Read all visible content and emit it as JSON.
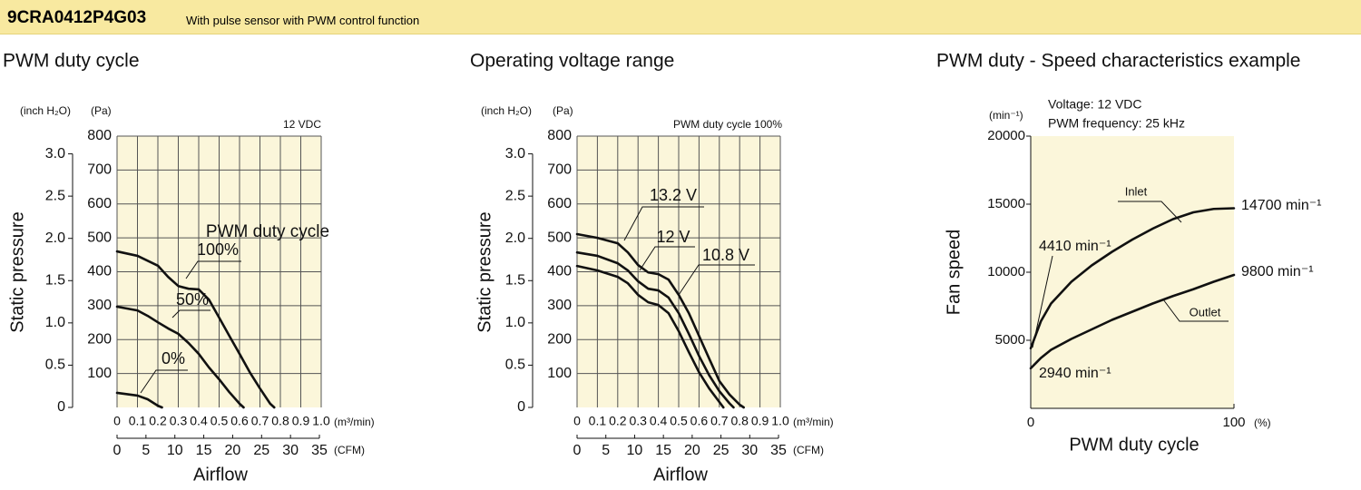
{
  "header": {
    "model": "9CRA0412P4G03",
    "description": "With pulse sensor with PWM control function"
  },
  "chart_data": [
    {
      "type": "line",
      "title": "PWM duty cycle",
      "annotations": [
        "12 VDC"
      ],
      "legend_title": "PWM duty cycle",
      "xlabel": "Airflow",
      "xunit": "(m³/min)",
      "x2unit": "(CFM)",
      "ylabel": "Static pressure",
      "yunit": "(Pa)",
      "y2unit": "(inch H₂O)",
      "xlim": [
        0,
        1
      ],
      "xticks": [
        0,
        0.1,
        0.2,
        0.3,
        0.4,
        0.5,
        0.6,
        0.7,
        0.8,
        0.9,
        {
          "value": 1,
          "label": "1.0"
        }
      ],
      "x2lim": [
        0,
        35.31
      ],
      "x2ticks": [
        0,
        5,
        10,
        15,
        20,
        25,
        30,
        35
      ],
      "ylim": [
        0,
        800
      ],
      "yticks": [
        100,
        200,
        300,
        400,
        500,
        600,
        700,
        800
      ],
      "y2lim": [
        0,
        3.21
      ],
      "y2ticks": [
        0,
        0.5,
        {
          "value": 1,
          "label": "1.0"
        },
        1.5,
        {
          "value": 2,
          "label": "2.0"
        },
        2.5,
        {
          "value": 3,
          "label": "3.0"
        }
      ],
      "grid": true,
      "background": "#fbf6da",
      "series": [
        {
          "name": "100%",
          "color": "#111111",
          "x": [
            0,
            0.1,
            0.2,
            0.25,
            0.3,
            0.35,
            0.4,
            0.45,
            0.5,
            0.55,
            0.6,
            0.65,
            0.7,
            0.75,
            0.77
          ],
          "values": [
            460,
            447,
            418,
            385,
            358,
            350,
            348,
            318,
            265,
            211,
            158,
            104,
            56,
            11,
            0
          ]
        },
        {
          "name": "50%",
          "color": "#111111",
          "x": [
            0,
            0.1,
            0.15,
            0.2,
            0.25,
            0.3,
            0.35,
            0.4,
            0.45,
            0.5,
            0.55,
            0.6,
            0.62
          ],
          "values": [
            297,
            286,
            270,
            251,
            233,
            217,
            190,
            158,
            118,
            83,
            45,
            11,
            0
          ]
        },
        {
          "name": "0%",
          "color": "#111111",
          "x": [
            0,
            0.1,
            0.15,
            0.2,
            0.22
          ],
          "values": [
            43,
            35,
            24,
            5,
            0
          ]
        }
      ]
    },
    {
      "type": "line",
      "title": "Operating voltage range",
      "annotations": [
        "PWM duty cycle 100%"
      ],
      "xlabel": "Airflow",
      "xunit": "(m³/min)",
      "x2unit": "(CFM)",
      "ylabel": "Static pressure",
      "yunit": "(Pa)",
      "y2unit": "(inch H₂O)",
      "xlim": [
        0,
        1
      ],
      "xticks": [
        0,
        0.1,
        0.2,
        0.3,
        0.4,
        0.5,
        0.6,
        0.7,
        0.8,
        0.9,
        {
          "value": 1,
          "label": "1.0"
        }
      ],
      "x2lim": [
        0,
        35.31
      ],
      "x2ticks": [
        0,
        5,
        10,
        15,
        20,
        25,
        30,
        35
      ],
      "ylim": [
        0,
        800
      ],
      "yticks": [
        100,
        200,
        300,
        400,
        500,
        600,
        700,
        800
      ],
      "y2lim": [
        0,
        3.21
      ],
      "y2ticks": [
        0,
        0.5,
        {
          "value": 1,
          "label": "1.0"
        },
        1.5,
        {
          "value": 2,
          "label": "2.0"
        },
        2.5,
        {
          "value": 3,
          "label": "3.0"
        }
      ],
      "grid": true,
      "background": "#fbf6da",
      "series": [
        {
          "name": "13.2 V",
          "color": "#111111",
          "x": [
            0,
            0.1,
            0.2,
            0.25,
            0.3,
            0.35,
            0.4,
            0.45,
            0.5,
            0.55,
            0.6,
            0.65,
            0.7,
            0.75,
            0.8,
            0.82
          ],
          "values": [
            511,
            500,
            484,
            457,
            420,
            398,
            393,
            377,
            332,
            278,
            211,
            144,
            78,
            38,
            8,
            0
          ]
        },
        {
          "name": "12 V",
          "color": "#111111",
          "x": [
            0,
            0.1,
            0.2,
            0.25,
            0.3,
            0.35,
            0.4,
            0.45,
            0.5,
            0.55,
            0.6,
            0.65,
            0.7,
            0.75,
            0.77
          ],
          "values": [
            457,
            447,
            425,
            404,
            372,
            350,
            345,
            324,
            278,
            217,
            152,
            95,
            48,
            12,
            0
          ]
        },
        {
          "name": "10.8 V",
          "color": "#111111",
          "x": [
            0,
            0.1,
            0.2,
            0.25,
            0.3,
            0.35,
            0.4,
            0.45,
            0.5,
            0.55,
            0.6,
            0.65,
            0.7,
            0.72
          ],
          "values": [
            417,
            404,
            385,
            366,
            332,
            310,
            302,
            278,
            225,
            163,
            104,
            56,
            16,
            0
          ]
        }
      ]
    },
    {
      "type": "line",
      "title": "PWM duty - Speed characteristics example",
      "annotations": [
        "Voltage: 12 VDC",
        "PWM frequency: 25 kHz"
      ],
      "xlabel": "PWM duty cycle",
      "xunit": "(%)",
      "ylabel": "Fan speed",
      "yunit": "(min⁻¹)",
      "xlim": [
        0,
        100
      ],
      "xticks": [
        0,
        100
      ],
      "ylim": [
        0,
        20000
      ],
      "yticks": [
        5000,
        10000,
        15000,
        20000
      ],
      "grid": false,
      "background": "#fbf6da",
      "series": [
        {
          "name": "Inlet",
          "color": "#111111",
          "x": [
            0,
            5,
            10,
            20,
            30,
            40,
            50,
            60,
            70,
            80,
            90,
            100
          ],
          "values": [
            4410,
            6400,
            7700,
            9300,
            10500,
            11500,
            12400,
            13200,
            13900,
            14400,
            14650,
            14700
          ],
          "value_labels": [
            "4410 min⁻¹",
            null,
            null,
            null,
            null,
            null,
            null,
            null,
            null,
            null,
            null,
            "14700 min⁻¹"
          ]
        },
        {
          "name": "Outlet",
          "color": "#111111",
          "x": [
            0,
            5,
            10,
            20,
            30,
            40,
            50,
            60,
            70,
            80,
            90,
            100
          ],
          "values": [
            2940,
            3700,
            4300,
            5100,
            5800,
            6500,
            7100,
            7700,
            8250,
            8750,
            9300,
            9800
          ],
          "value_labels": [
            "2940 min⁻¹",
            null,
            null,
            null,
            null,
            null,
            null,
            null,
            null,
            null,
            null,
            "9800 min⁻¹"
          ]
        }
      ]
    }
  ]
}
